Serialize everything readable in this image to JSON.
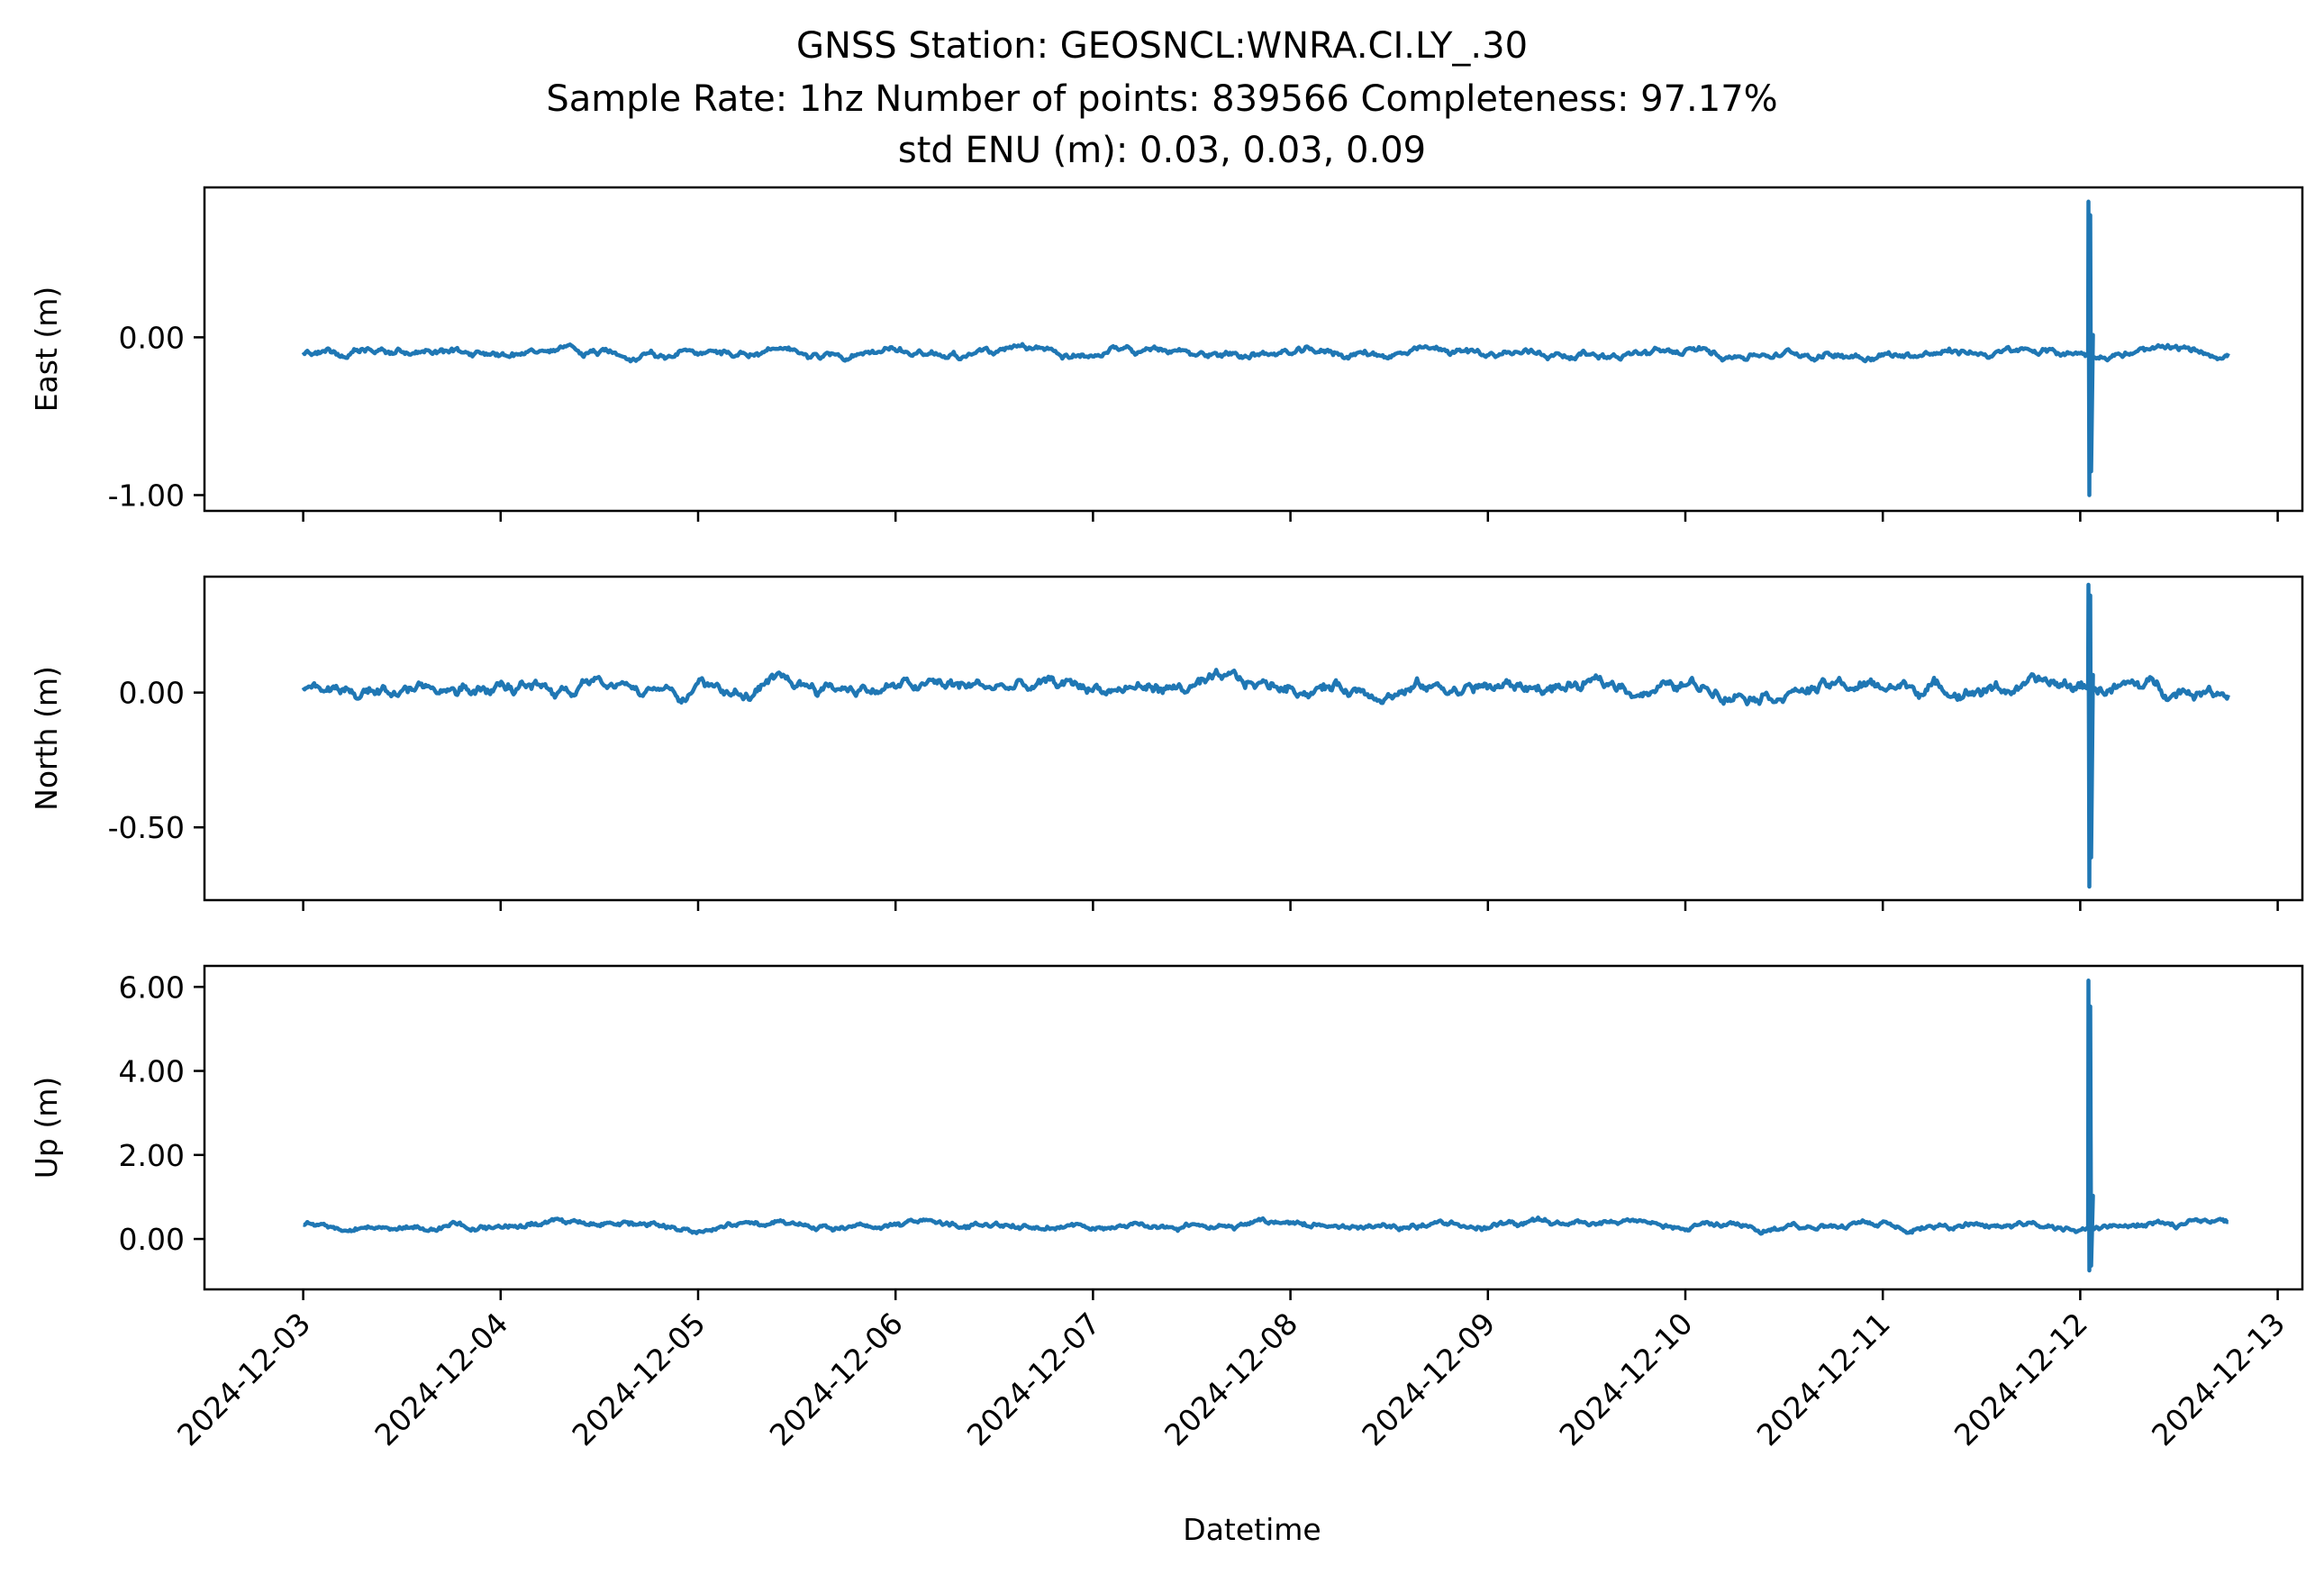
{
  "figure": {
    "title_lines": [
      "GNSS Station: GEOSNCL:WNRA.CI.LY_.30",
      "Sample Rate: 1hz   Number of points: 839566    Completeness:  97.17%",
      "std ENU (m):  0.03, 0.03, 0.09"
    ],
    "xlabel": "Datetime",
    "line_color": "#1f77b4"
  },
  "chart_data": [
    {
      "type": "line",
      "ylabel": "East (m)",
      "ylim": [
        -1.1,
        0.95
      ],
      "yticks": [
        {
          "value": 0.0,
          "label": "0.00"
        },
        {
          "value": -1.0,
          "label": "-1.00"
        }
      ],
      "x_start": "2024-12-03",
      "x_end": "2024-12-12 18:00",
      "baseline": -0.1,
      "noise": 0.03,
      "spike": {
        "at": "2024-12-12 01:00",
        "max": 0.86,
        "min": -1.0
      },
      "series": [
        {
          "values_note": ""
        }
      ]
    },
    {
      "type": "line",
      "ylabel": "North (m)",
      "ylim": [
        -0.77,
        0.43
      ],
      "yticks": [
        {
          "value": 0.0,
          "label": "0.00"
        },
        {
          "value": -0.5,
          "label": "-0.50"
        }
      ],
      "x_start": "2024-12-03",
      "x_end": "2024-12-12 18:00",
      "baseline": 0.02,
      "noise": 0.03,
      "spike": {
        "at": "2024-12-12 01:00",
        "max": 0.4,
        "min": -0.72
      },
      "series": [
        {
          "values_note": ""
        }
      ]
    },
    {
      "type": "line",
      "ylabel": "Up (m)",
      "ylim": [
        -1.2,
        6.5
      ],
      "yticks": [
        {
          "value": 6.0,
          "label": "6.00"
        },
        {
          "value": 4.0,
          "label": "4.00"
        },
        {
          "value": 2.0,
          "label": "2.00"
        },
        {
          "value": 0.0,
          "label": "0.00"
        }
      ],
      "x_start": "2024-12-03",
      "x_end": "2024-12-12 18:00",
      "baseline": 0.33,
      "noise": 0.09,
      "spike": {
        "at": "2024-12-12 01:00",
        "max": 6.15,
        "min": -0.75
      },
      "series": [
        {
          "values_note": ""
        }
      ]
    }
  ],
  "x_axis": {
    "ticks": [
      "2024-12-03",
      "2024-12-04",
      "2024-12-05",
      "2024-12-06",
      "2024-12-07",
      "2024-12-08",
      "2024-12-09",
      "2024-12-10",
      "2024-12-11",
      "2024-12-12",
      "2024-12-13"
    ],
    "range": [
      "2024-12-02 12:00",
      "2024-12-13 03:00"
    ]
  }
}
